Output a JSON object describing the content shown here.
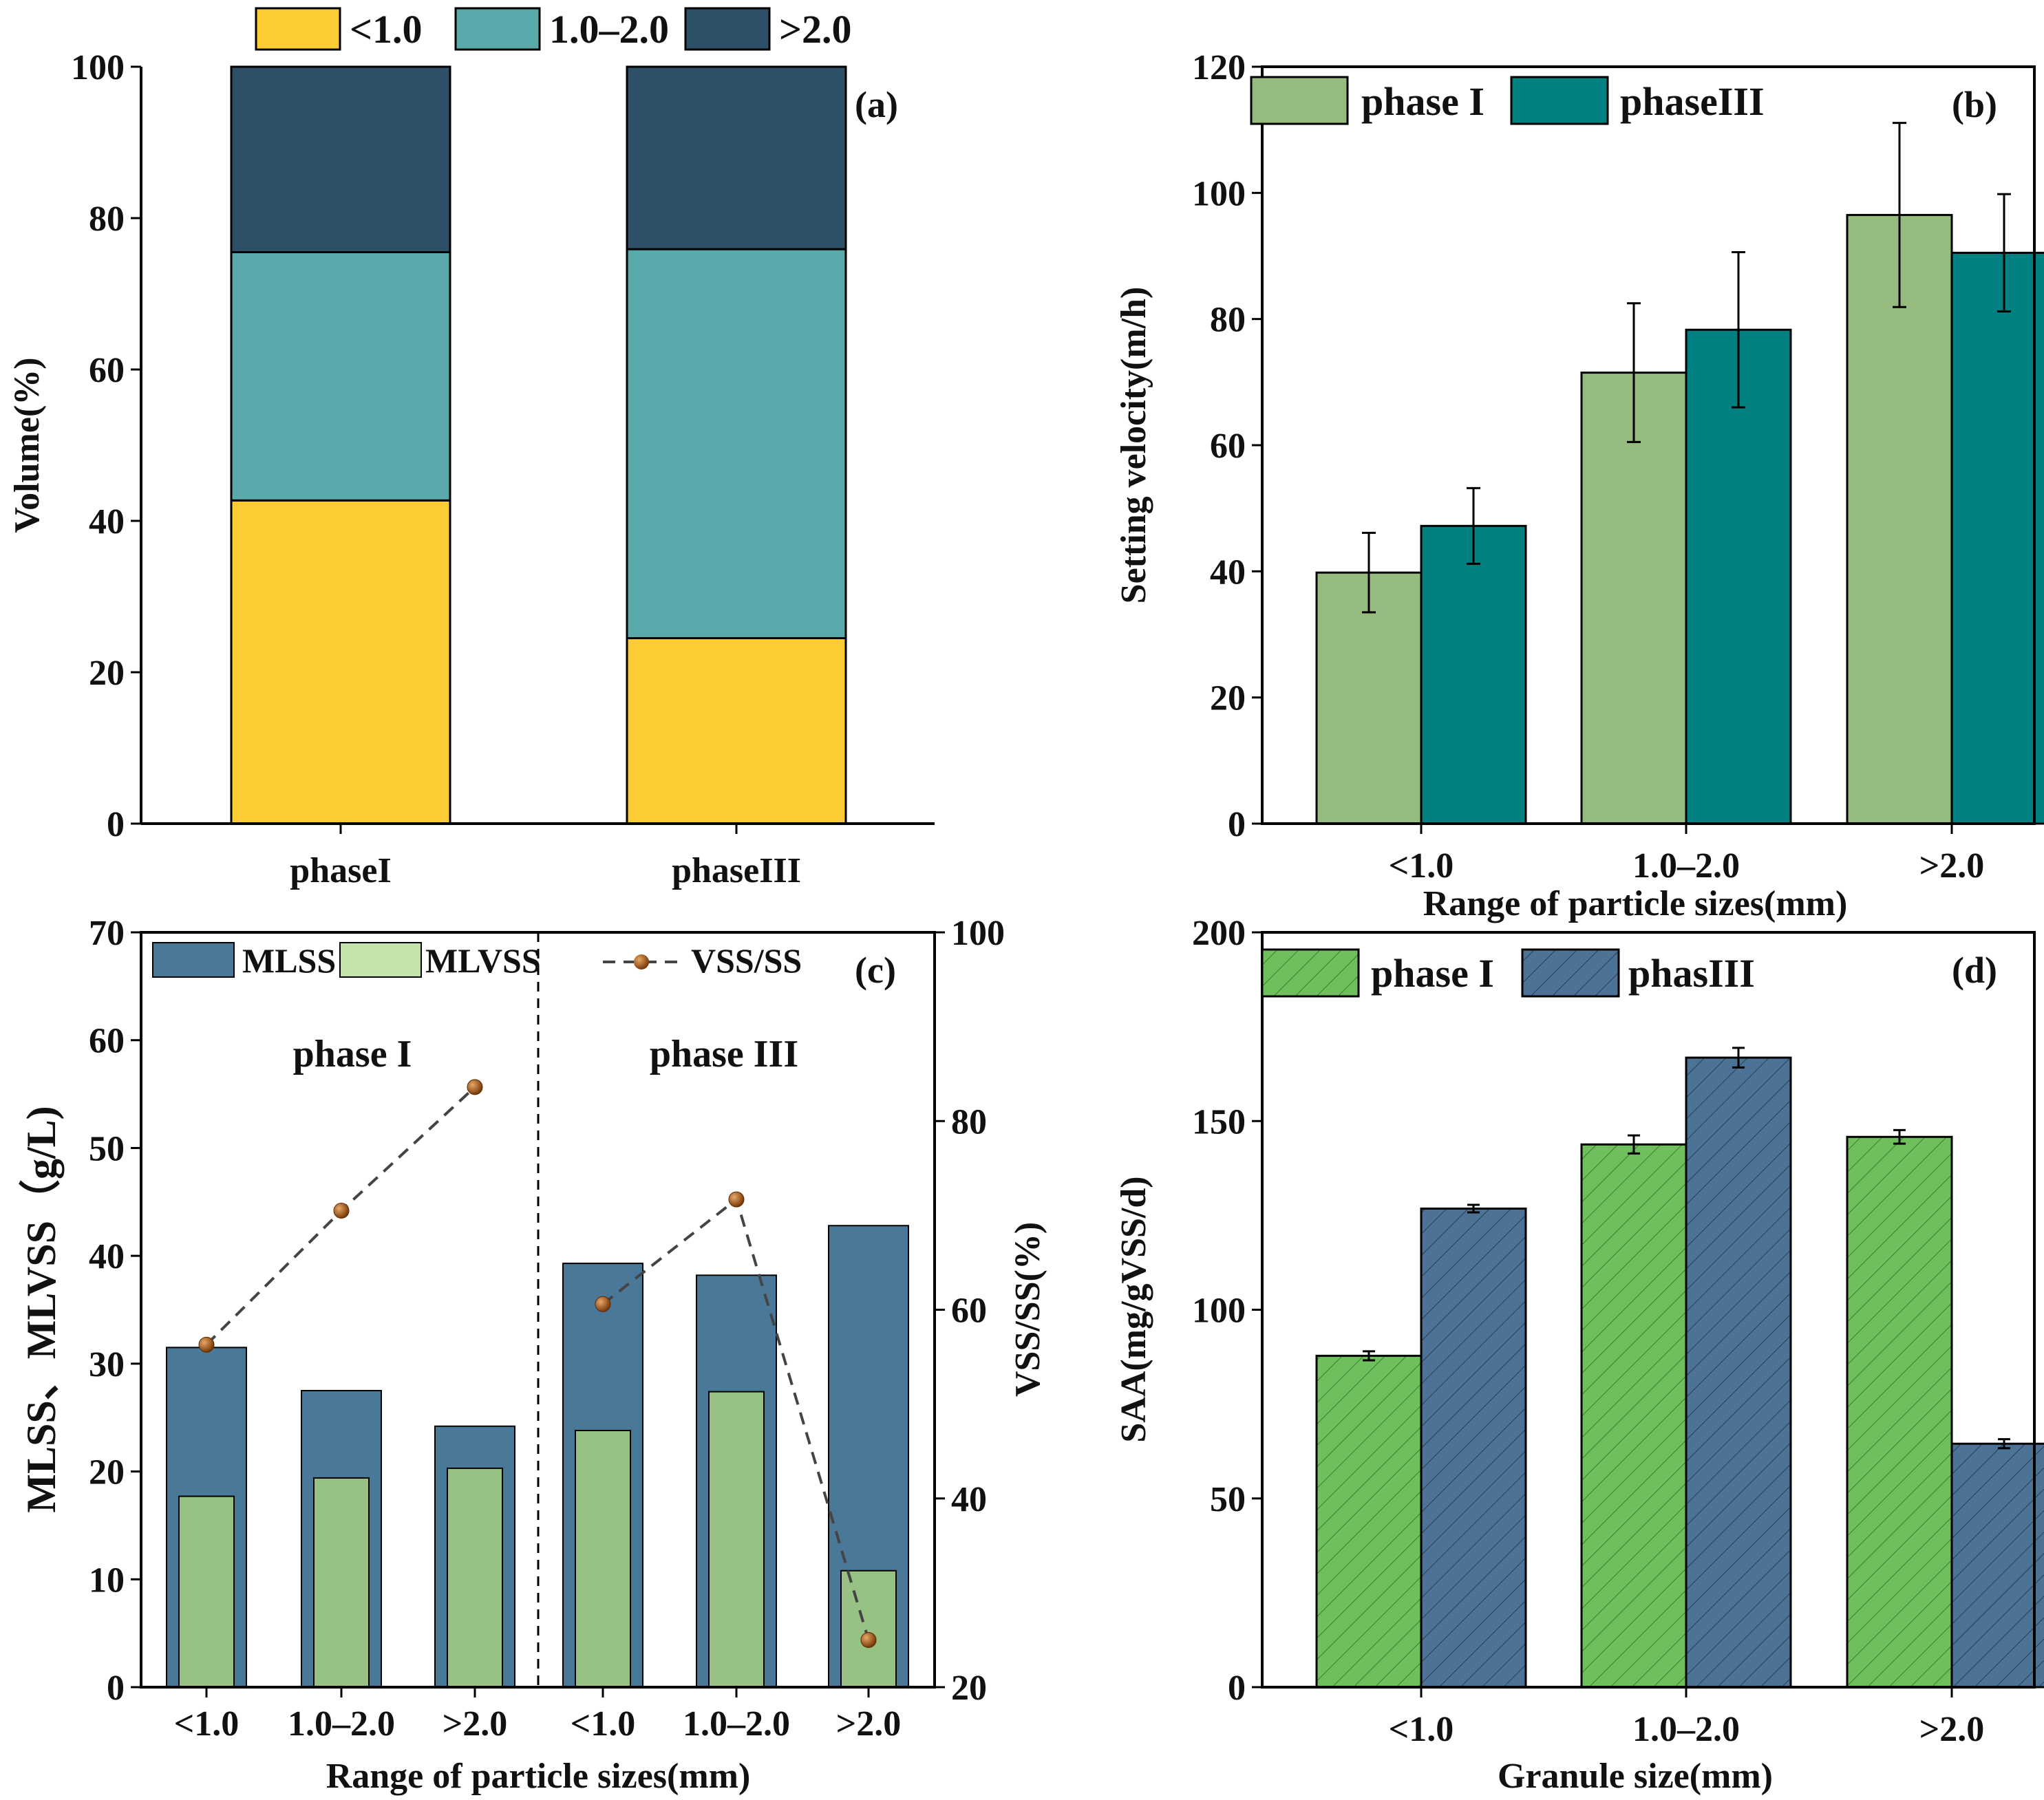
{
  "chart_data": [
    {
      "panel": "(a)",
      "type": "bar",
      "stacked": true,
      "categories": [
        "phaseI",
        "phaseIII"
      ],
      "series": [
        {
          "name": "<1.0",
          "values": [
            42.7,
            24.5
          ],
          "color": "#fdcb33"
        },
        {
          "name": "1.0–2.0",
          "values": [
            32.8,
            51.4
          ],
          "color": "#5aa9aa"
        },
        {
          "name": ">2.0",
          "values": [
            24.5,
            24.1
          ],
          "color": "#2e4f68"
        }
      ],
      "xlabel": "",
      "ylabel": "Volume(%)",
      "ylim": [
        0,
        100
      ],
      "yticks": [
        "0",
        "20",
        "40",
        "60",
        "80",
        "100"
      ],
      "legend": "top"
    },
    {
      "panel": "(b)",
      "type": "bar",
      "categories": [
        "<1.0",
        "1.0–2.0",
        ">2.0"
      ],
      "series": [
        {
          "name": "phase I",
          "values": [
            39.8,
            71.5,
            96.5
          ],
          "errors": [
            6.3,
            11.0,
            14.6
          ],
          "color": "#95bb7e"
        },
        {
          "name": "phaseIII",
          "values": [
            47.2,
            78.3,
            90.5
          ],
          "errors": [
            6.0,
            12.3,
            9.3
          ],
          "color": "#008080"
        }
      ],
      "xlabel": "Range of particle sizes(mm)",
      "ylabel": "Setting velocity(m/h)",
      "ylim": [
        0,
        120
      ],
      "yticks": [
        "0",
        "20",
        "40",
        "60",
        "80",
        "100",
        "120"
      ],
      "legend": "top-left"
    },
    {
      "panel": "(c)",
      "type": "bar",
      "groups": [
        "phase I",
        "phase III"
      ],
      "categories": [
        "<1.0",
        "1.0–2.0",
        ">2.0",
        "<1.0",
        "1.0–2.0",
        ">2.0"
      ],
      "series": [
        {
          "name": "MLSS",
          "values": [
            31.5,
            27.5,
            24.2,
            39.3,
            38.2,
            42.8
          ],
          "color": "#4a7898"
        },
        {
          "name": "MLVSS",
          "values": [
            17.7,
            19.4,
            20.3,
            23.8,
            27.4,
            10.8
          ],
          "color": "#98c284"
        },
        {
          "name": "VSS/SS",
          "axis": "right",
          "style": "dashed-line-markers",
          "values": [
            56.3,
            70.5,
            83.6,
            60.6,
            71.7,
            25.0
          ],
          "color": "#8b4a12"
        }
      ],
      "xlabel": "Range of particle sizes(mm)",
      "ylabel": "MLSS、MLVSS（g/L)",
      "ylabel_right": "VSS/SS(%)",
      "ylim": [
        0,
        70
      ],
      "ylim_right": [
        20,
        100
      ],
      "yticks": [
        "0",
        "10",
        "20",
        "30",
        "40",
        "50",
        "60",
        "70"
      ],
      "yticks_right": [
        "20",
        "40",
        "60",
        "80",
        "100"
      ],
      "legend": "top"
    },
    {
      "panel": "(d)",
      "type": "bar",
      "hatched": true,
      "categories": [
        "<1.0",
        "1.0–2.0",
        ">2.0"
      ],
      "series": [
        {
          "name": "phase I",
          "values": [
            87.8,
            143.8,
            145.8
          ],
          "errors": [
            1.2,
            2.4,
            1.8
          ],
          "color": "#6fbf5d"
        },
        {
          "name": "phasIII",
          "values": [
            126.8,
            166.8,
            64.5
          ],
          "errors": [
            1.0,
            2.6,
            1.2
          ],
          "color": "#4c7295"
        }
      ],
      "xlabel": "Granule size(mm)",
      "ylabel": "SAA(mg/gVSS/d)",
      "ylim": [
        0,
        200
      ],
      "yticks": [
        "0",
        "50",
        "100",
        "150",
        "200"
      ],
      "legend": "top-left"
    }
  ],
  "labels": {
    "a_leg": [
      "<1.0",
      "1.0–2.0",
      ">2.0"
    ],
    "b_cats": [
      "<1.0",
      "1.0–2.0",
      ">2.0"
    ],
    "d_cats": [
      "<1.0",
      "1.0–2.0",
      ">2.0"
    ],
    "c_cats": [
      "<1.0",
      "1.0–2.0",
      ">2.0",
      "<1.0",
      "1.0–2.0",
      ">2.0"
    ],
    "c_legend": {
      "mlss": "MLSS",
      "mlvss": "MLVSS",
      "vss": "VSS/SS"
    },
    "c_groups": [
      "phase I",
      "phase III"
    ]
  }
}
